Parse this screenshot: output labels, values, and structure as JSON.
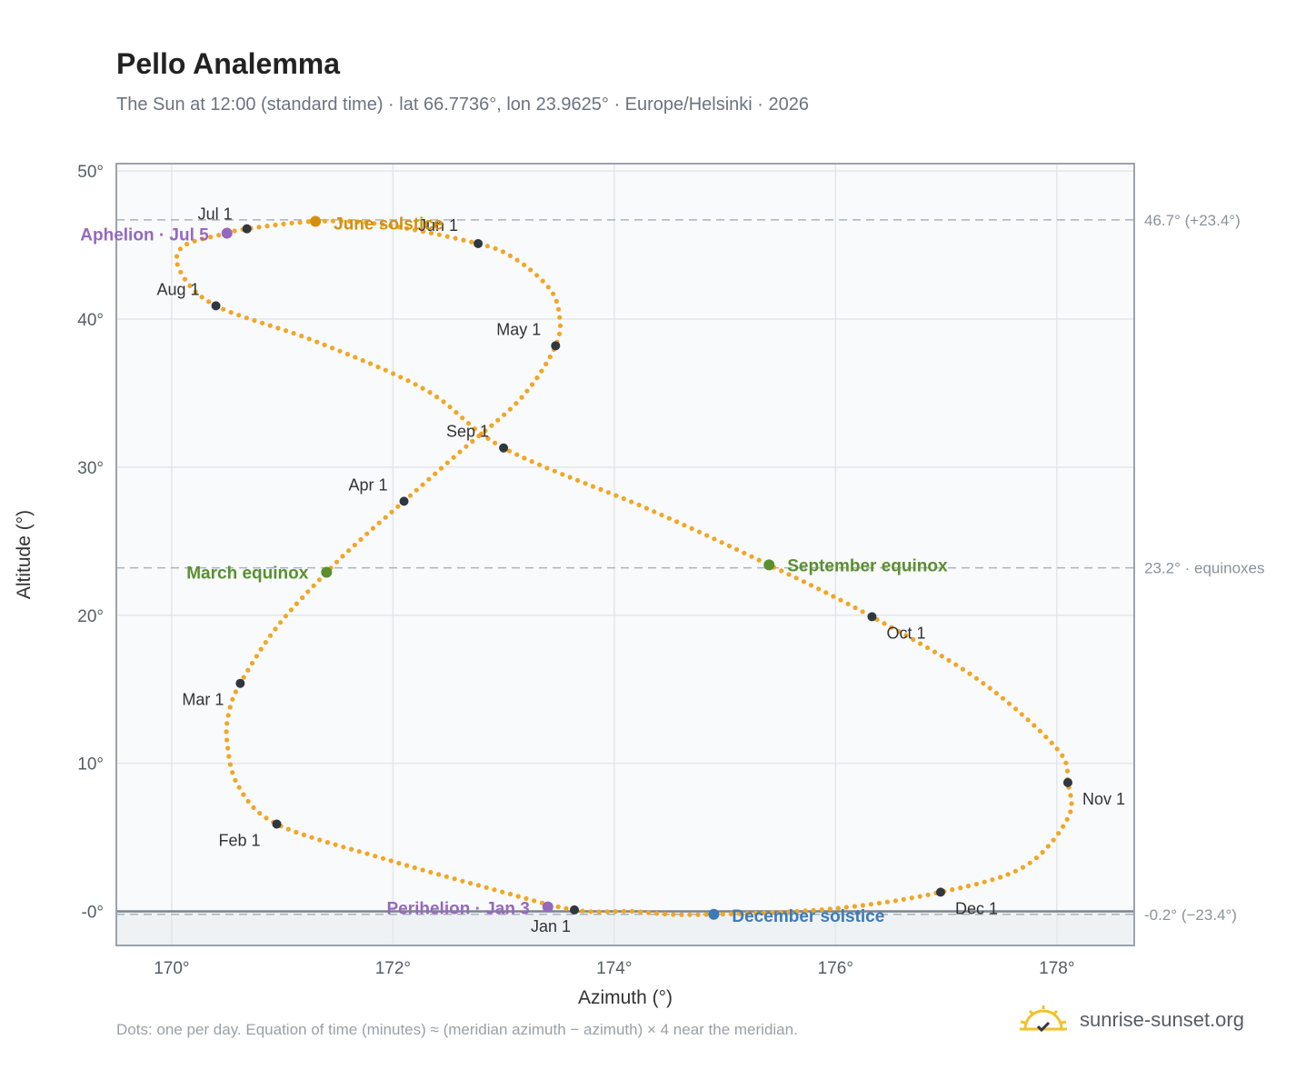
{
  "header": {
    "title": "Pello Analemma",
    "subtitle": "The Sun at 12:00 (standard time) · lat 66.7736°, lon 23.9625° · Europe/Helsinki · 2026"
  },
  "footer": {
    "note": "Dots: one per day. Equation of time (minutes) ≈ (meridian azimuth − azimuth) × 4 near the meridian.",
    "brand": "sunrise-sunset.org",
    "brand_icon": "sun-logo-icon"
  },
  "colors": {
    "curve": "#f2a623",
    "month_marker": "#2f3840",
    "equinox": "#5a8f2f",
    "june_solstice": "#d4900c",
    "december_solstice": "#3d7ab8",
    "apsis": "#9569be",
    "plot_bg": "#f8fafc",
    "below_horizon_bg": "#eef2f5"
  },
  "chart_data": {
    "type": "scatter",
    "title": "Pello Analemma",
    "xlabel": "Azimuth (°)",
    "ylabel": "Altitude (°)",
    "xlim": [
      169.5,
      178.7
    ],
    "ylim": [
      -2.3,
      50.5
    ],
    "x_ticks": [
      170,
      172,
      174,
      176,
      178
    ],
    "x_tick_labels": [
      "170°",
      "172°",
      "174°",
      "176°",
      "178°"
    ],
    "y_ticks": [
      0,
      10,
      20,
      30,
      40,
      50
    ],
    "y_tick_labels": [
      "-0°",
      "10°",
      "20°",
      "30°",
      "40°",
      "50°"
    ],
    "grid": true,
    "horizon_altitude": 0,
    "reference_lines": [
      {
        "y": 46.7,
        "label": "46.7° (+23.4°)"
      },
      {
        "y": 23.2,
        "label": "23.2° · equinoxes"
      },
      {
        "y": -0.2,
        "label": "-0.2° (−23.4°)"
      }
    ],
    "series": [
      {
        "type": "line",
        "points": [
          [
            173.64,
            0.1
          ],
          [
            172.9,
            1.5
          ],
          [
            171.9,
            3.6
          ],
          [
            170.95,
            5.9
          ],
          [
            170.6,
            8.5
          ],
          [
            170.5,
            11.5
          ],
          [
            170.52,
            13.5
          ],
          [
            170.62,
            15.4
          ],
          [
            170.95,
            19.2
          ],
          [
            171.4,
            22.9
          ],
          [
            171.75,
            25.4
          ],
          [
            172.1,
            27.7
          ],
          [
            172.6,
            31.0
          ],
          [
            173.15,
            34.6
          ],
          [
            173.47,
            38.2
          ],
          [
            173.5,
            40.5
          ],
          [
            173.4,
            42.2
          ],
          [
            173.1,
            44.1
          ],
          [
            172.77,
            45.1
          ],
          [
            171.9,
            46.4
          ],
          [
            171.3,
            46.6
          ],
          [
            170.68,
            46.1
          ],
          [
            170.5,
            45.8
          ],
          [
            170.1,
            44.9
          ],
          [
            170.08,
            43.2
          ],
          [
            170.4,
            40.9
          ],
          [
            171.3,
            38.5
          ],
          [
            172.3,
            35.2
          ],
          [
            173.0,
            31.3
          ],
          [
            174.3,
            27.2
          ],
          [
            175.4,
            23.4
          ],
          [
            176.33,
            19.9
          ],
          [
            177.3,
            15.6
          ],
          [
            178.0,
            11.0
          ],
          [
            178.1,
            8.7
          ],
          [
            178.1,
            6.3
          ],
          [
            177.7,
            3.0
          ],
          [
            176.95,
            1.3
          ],
          [
            176.0,
            0.2
          ],
          [
            174.9,
            -0.2
          ],
          [
            174.2,
            0.0
          ],
          [
            173.64,
            0.1
          ]
        ]
      }
    ],
    "month_markers": [
      {
        "label": "Jan 1",
        "azimuth": 173.64,
        "altitude": 0.1
      },
      {
        "label": "Feb 1",
        "azimuth": 170.95,
        "altitude": 5.9
      },
      {
        "label": "Mar 1",
        "azimuth": 170.62,
        "altitude": 15.4
      },
      {
        "label": "Apr 1",
        "azimuth": 172.1,
        "altitude": 27.7
      },
      {
        "label": "May 1",
        "azimuth": 173.47,
        "altitude": 38.2
      },
      {
        "label": "Jun 1",
        "azimuth": 172.77,
        "altitude": 45.1
      },
      {
        "label": "Jul 1",
        "azimuth": 170.68,
        "altitude": 46.1
      },
      {
        "label": "Aug 1",
        "azimuth": 170.4,
        "altitude": 40.9
      },
      {
        "label": "Sep 1",
        "azimuth": 173.0,
        "altitude": 31.3
      },
      {
        "label": "Oct 1",
        "azimuth": 176.33,
        "altitude": 19.9
      },
      {
        "label": "Nov 1",
        "azimuth": 178.1,
        "altitude": 8.7
      },
      {
        "label": "Dec 1",
        "azimuth": 176.95,
        "altitude": 1.3
      }
    ],
    "events": [
      {
        "label": "March equinox",
        "kind": "equinox",
        "azimuth": 171.4,
        "altitude": 22.9
      },
      {
        "label": "September equinox",
        "kind": "equinox",
        "azimuth": 175.4,
        "altitude": 23.4
      },
      {
        "label": "June solstice",
        "kind": "june_solstice",
        "azimuth": 171.3,
        "altitude": 46.6
      },
      {
        "label": "December solstice",
        "kind": "december_solstice",
        "azimuth": 174.9,
        "altitude": -0.2
      },
      {
        "label": "Aphelion · Jul 5",
        "kind": "apsis",
        "azimuth": 170.5,
        "altitude": 45.8
      },
      {
        "label": "Perihelion · Jan 3",
        "kind": "apsis",
        "azimuth": 173.4,
        "altitude": 0.3
      }
    ]
  }
}
